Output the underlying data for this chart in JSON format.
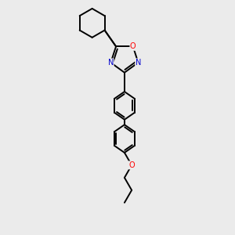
{
  "background_color": "#ebebeb",
  "bond_color": "#000000",
  "nitrogen_color": "#0000cc",
  "oxygen_color": "#ff0000",
  "line_width": 1.4,
  "fig_width": 3.0,
  "fig_height": 3.0,
  "dpi": 100,
  "xlim": [
    0,
    10
  ],
  "ylim": [
    0,
    10
  ]
}
